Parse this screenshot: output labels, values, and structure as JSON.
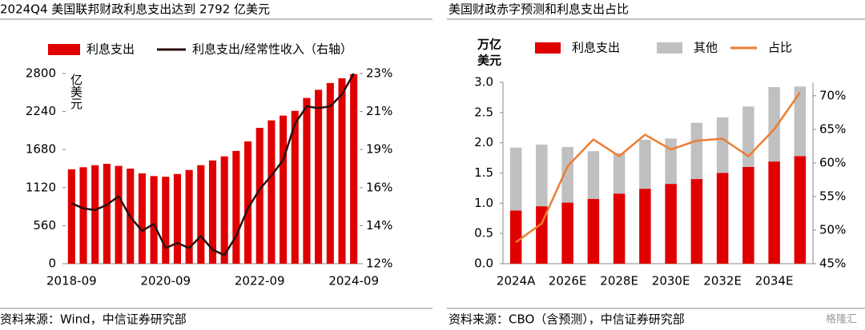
{
  "chart_data": [
    {
      "type": "combo",
      "title": "2024Q4 美国联邦财政利息支出达到 2792 亿美元",
      "unit_label": "亿美元",
      "categories": [
        "2018-09",
        null,
        null,
        null,
        null,
        null,
        null,
        null,
        "2020-09",
        null,
        null,
        null,
        null,
        null,
        null,
        null,
        "2022-09",
        null,
        null,
        null,
        null,
        null,
        null,
        null,
        "2024-09"
      ],
      "series": [
        {
          "name": "利息支出",
          "kind": "bar",
          "color": "#e00000",
          "values": [
            1390,
            1420,
            1450,
            1470,
            1440,
            1400,
            1330,
            1290,
            1280,
            1320,
            1380,
            1450,
            1520,
            1580,
            1660,
            1800,
            2000,
            2110,
            2180,
            2250,
            2440,
            2560,
            2660,
            2730,
            2792
          ]
        },
        {
          "name": "利息支出/经常性收入（右轴）",
          "kind": "line",
          "axis": "y2",
          "color": "#2a1010",
          "values": [
            15.5,
            15.2,
            15.1,
            15.4,
            15.9,
            14.7,
            13.9,
            14.3,
            12.9,
            13.2,
            12.9,
            13.6,
            12.8,
            12.5,
            13.6,
            15.2,
            16.3,
            17.1,
            18.0,
            20.1,
            21.1,
            21.0,
            21.1,
            21.8,
            23.0
          ]
        }
      ],
      "ylim": [
        0,
        2800
      ],
      "yticks": [
        0,
        560,
        1120,
        1680,
        2240,
        2800
      ],
      "y2lim": [
        12,
        23
      ],
      "y2ticks": [
        {
          "value": 12,
          "label": "12%"
        },
        {
          "value": 14.2,
          "label": "14%"
        },
        {
          "value": 16.4,
          "label": "16%"
        },
        {
          "value": 18.6,
          "label": "19%"
        },
        {
          "value": 20.8,
          "label": "21%"
        },
        {
          "value": 23,
          "label": "23%"
        }
      ],
      "source": "资料来源：Wind，中信证券研究部"
    },
    {
      "type": "combo",
      "title": "美国财政赤字预测和利息支出占比",
      "unit_label": [
        "万亿",
        "美元"
      ],
      "stacked": true,
      "categories": [
        "2024A",
        null,
        "2026E",
        null,
        "2028E",
        null,
        "2030E",
        null,
        "2032E",
        null,
        "2034E",
        null
      ],
      "series": [
        {
          "name": "利息支出",
          "kind": "bar",
          "color": "#e00000",
          "values": [
            0.88,
            0.95,
            1.01,
            1.07,
            1.16,
            1.24,
            1.32,
            1.4,
            1.5,
            1.6,
            1.69,
            1.78
          ]
        },
        {
          "name": "其他",
          "kind": "bar",
          "color": "#c0c0c0",
          "values": [
            1.04,
            1.02,
            0.92,
            0.79,
            0.67,
            0.81,
            0.75,
            0.93,
            0.92,
            1.0,
            1.23,
            1.15
          ]
        },
        {
          "name": "占比",
          "kind": "line",
          "axis": "y2",
          "color": "#ed7d31",
          "values": [
            48.2,
            51.0,
            59.5,
            63.5,
            61.0,
            64.2,
            62.0,
            63.3,
            63.6,
            61.0,
            65.0,
            70.5
          ]
        }
      ],
      "ylim": [
        0,
        3
      ],
      "yticks": [
        {
          "value": 0,
          "label": "0.0"
        },
        {
          "value": 0.5,
          "label": "0.5"
        },
        {
          "value": 1,
          "label": "1.0"
        },
        {
          "value": 1.5,
          "label": "1.5"
        },
        {
          "value": 2,
          "label": "2.0"
        },
        {
          "value": 2.5,
          "label": "2.5"
        },
        {
          "value": 3,
          "label": "3.0"
        }
      ],
      "y2lim": [
        45,
        72
      ],
      "y2ticks": [
        {
          "value": 45,
          "label": "45%"
        },
        {
          "value": 50,
          "label": "50%"
        },
        {
          "value": 55,
          "label": "55%"
        },
        {
          "value": 60,
          "label": "60%"
        },
        {
          "value": 65,
          "label": "65%"
        },
        {
          "value": 70,
          "label": "70%"
        }
      ],
      "source": "资料来源：CBO（含预测），中信证券研究部"
    }
  ],
  "watermark": "格隆汇"
}
